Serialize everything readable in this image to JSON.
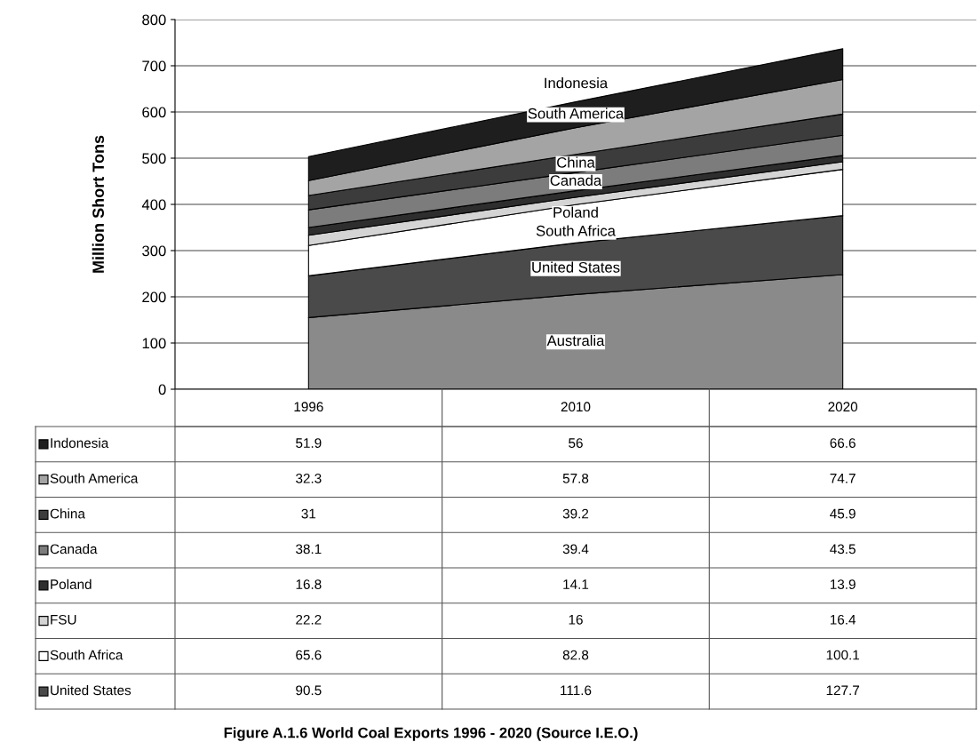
{
  "chart_data": {
    "type": "area",
    "stacked": true,
    "ylabel": "Million Short Tons",
    "categories": [
      "1996",
      "2010",
      "2020"
    ],
    "series": [
      {
        "name": "Australia",
        "color": "#8a8a8a",
        "values": [
          155,
          205,
          248
        ],
        "value_labels": [
          null,
          null,
          null
        ]
      },
      {
        "name": "United States",
        "color": "#4a4a4a",
        "values": [
          90.5,
          111.6,
          127.7
        ],
        "value_labels": [
          "90.5",
          "111.6",
          "127.7"
        ]
      },
      {
        "name": "South Africa",
        "color": "#ffffff",
        "values": [
          65.6,
          82.8,
          100.1
        ],
        "value_labels": [
          "65.6",
          "82.8",
          "100.1"
        ]
      },
      {
        "name": "FSU",
        "color": "#d4d4d4",
        "values": [
          22.2,
          16,
          16.4
        ],
        "value_labels": [
          "22.2",
          "16",
          "16.4"
        ]
      },
      {
        "name": "Poland",
        "color": "#2e2e2e",
        "values": [
          16.8,
          14.1,
          13.9
        ],
        "value_labels": [
          "16.8",
          "14.1",
          "13.9"
        ]
      },
      {
        "name": "Canada",
        "color": "#7c7c7c",
        "values": [
          38.1,
          39.4,
          43.5
        ],
        "value_labels": [
          "38.1",
          "39.4",
          "43.5"
        ]
      },
      {
        "name": "China",
        "color": "#3c3c3c",
        "values": [
          31,
          39.2,
          45.9
        ],
        "value_labels": [
          "31",
          "39.2",
          "45.9"
        ]
      },
      {
        "name": "South America",
        "color": "#a4a4a4",
        "values": [
          32.3,
          57.8,
          74.7
        ],
        "value_labels": [
          "32.3",
          "57.8",
          "74.7"
        ]
      },
      {
        "name": "Indonesia",
        "color": "#1e1e1e",
        "values": [
          51.9,
          56,
          66.6
        ],
        "value_labels": [
          "51.9",
          "56",
          "66.6"
        ]
      }
    ],
    "ylim": [
      0,
      800
    ],
    "yticks": [
      0,
      100,
      200,
      300,
      400,
      500,
      600,
      700,
      800
    ],
    "grid": "y",
    "legend": "bottom left",
    "annotations": [
      "Indonesia",
      "South America",
      "China",
      "Canada",
      "Poland",
      "South Africa",
      "United States",
      "Figure A.1.6 World Coal Exports 1996 - 2020 (Source I.E.O.)"
    ]
  }
}
